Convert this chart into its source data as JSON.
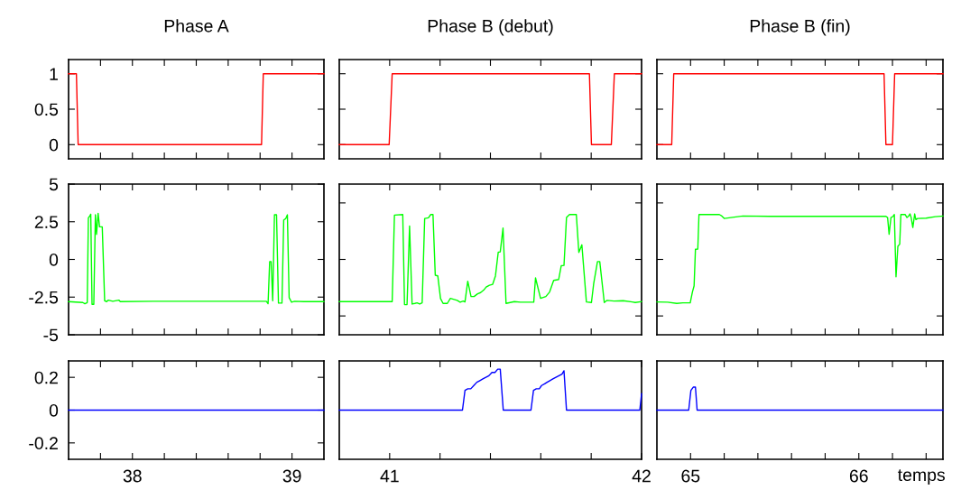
{
  "chart_data": [
    {
      "type": "line",
      "title": "Phase A",
      "xlim": [
        37.6,
        39.2
      ],
      "ylim": [
        -0.2,
        1.2
      ],
      "xticks": [
        37.8,
        38,
        38.2,
        38.4,
        38.6,
        38.8,
        39
      ],
      "yticks": [
        0,
        0.5,
        1
      ],
      "tick_labels": "y",
      "grid": false,
      "series": [
        {
          "color": "#ff0000",
          "x": [
            37.6,
            37.649,
            37.66,
            38.809,
            38.82,
            39.2
          ],
          "values": [
            1,
            1,
            0,
            0,
            1,
            1
          ]
        }
      ]
    },
    {
      "type": "line",
      "title": "Phase B (debut)",
      "xlim": [
        40.8,
        42
      ],
      "ylim": [
        -0.2,
        1.2
      ],
      "xticks": [
        41,
        41.2,
        41.4,
        41.6,
        41.8
      ],
      "yticks": [
        0,
        0.5,
        1
      ],
      "tick_labels": false,
      "grid": false,
      "series": [
        {
          "color": "#ff0000",
          "x": [
            40.8,
            40.998,
            41.01,
            41.793,
            41.801,
            41.88,
            41.892,
            42
          ],
          "values": [
            0,
            0,
            1,
            1,
            0,
            0,
            1,
            1
          ]
        }
      ]
    },
    {
      "type": "line",
      "title": "Phase B (fin)",
      "xlim": [
        64.8,
        66.5
      ],
      "ylim": [
        -0.2,
        1.2
      ],
      "xticks": [
        65,
        65.2,
        65.4,
        65.6,
        65.8,
        66,
        66.2,
        66.4
      ],
      "yticks": [
        0,
        0.5,
        1
      ],
      "tick_labels": false,
      "grid": false,
      "series": [
        {
          "color": "#ff0000",
          "x": [
            64.8,
            64.888,
            64.9,
            66.15,
            66.161,
            66.2,
            66.213,
            66.5
          ],
          "values": [
            0,
            0,
            1,
            1,
            0,
            0,
            1,
            1
          ]
        }
      ]
    },
    {
      "type": "line",
      "xlim": [
        37.6,
        39.2
      ],
      "ylim": [
        -5,
        5
      ],
      "xticks": [
        37.8,
        38,
        38.2,
        38.4,
        38.6,
        38.8,
        39
      ],
      "yticks": [
        -5,
        -2.5,
        0,
        2.5,
        5
      ],
      "tick_labels": "y",
      "grid": false,
      "series": [
        {
          "color": "#00ff00",
          "x": [
            37.6,
            37.689,
            37.702,
            37.717,
            37.724,
            37.732,
            37.739,
            37.747,
            37.758,
            37.768,
            37.775,
            37.785,
            37.794,
            37.811,
            37.826,
            37.839,
            37.849,
            37.877,
            37.915,
            37.924,
            38.131,
            38.319,
            38.508,
            38.696,
            38.839,
            38.85,
            38.86,
            38.869,
            38.879,
            38.89,
            38.903,
            38.915,
            38.937,
            38.948,
            38.96,
            38.971,
            38.982,
            38.997,
            39.016,
            39.073,
            39.2
          ],
          "values": [
            -2.8,
            -2.86,
            -2.94,
            -2.86,
            2.76,
            2.86,
            3.0,
            -2.98,
            -2.98,
            2.96,
            1.66,
            3.06,
            2.16,
            2.16,
            -2.74,
            -2.8,
            -2.7,
            -2.78,
            -2.7,
            -2.8,
            -2.78,
            -2.78,
            -2.78,
            -2.78,
            -2.78,
            -2.94,
            -0.14,
            -0.14,
            -2.74,
            2.96,
            2.96,
            -2.9,
            -2.9,
            2.62,
            2.7,
            2.96,
            -2.54,
            -2.84,
            -2.78,
            -2.8,
            -2.8
          ]
        }
      ]
    },
    {
      "type": "line",
      "xlim": [
        40.8,
        42
      ],
      "ylim": [
        -5,
        5
      ],
      "xticks": [
        41,
        41.2,
        41.4,
        41.6,
        41.8
      ],
      "yticks": [
        -3.75,
        0,
        3.75
      ],
      "tick_labels": false,
      "grid": false,
      "series": [
        {
          "color": "#00ff00",
          "x": [
            40.8,
            40.896,
            41.01,
            41.019,
            41.052,
            41.059,
            41.069,
            41.079,
            41.089,
            41.1,
            41.109,
            41.119,
            41.129,
            41.139,
            41.154,
            41.163,
            41.172,
            41.181,
            41.191,
            41.202,
            41.212,
            41.229,
            41.241,
            41.253,
            41.268,
            41.28,
            41.292,
            41.299,
            41.31,
            41.323,
            41.335,
            41.349,
            41.361,
            41.373,
            41.383,
            41.396,
            41.409,
            41.42,
            41.431,
            41.439,
            41.45,
            41.462,
            41.495,
            41.519,
            41.572,
            41.579,
            41.599,
            41.62,
            41.635,
            41.651,
            41.671,
            41.681,
            41.692,
            41.702,
            41.714,
            41.741,
            41.751,
            41.763,
            41.781,
            41.801,
            41.81,
            41.825,
            41.834,
            41.852,
            41.862,
            41.891,
            41.927,
            41.963,
            41.975,
            42
          ],
          "values": [
            -2.8,
            -2.8,
            -2.8,
            2.94,
            2.98,
            -3.0,
            -3.0,
            2.22,
            -2.96,
            -2.92,
            -2.88,
            -2.96,
            -2.88,
            2.72,
            2.76,
            2.98,
            2.98,
            -1.05,
            -1.09,
            -2.6,
            -2.92,
            -2.92,
            -2.58,
            -2.64,
            -2.72,
            -2.84,
            -2.76,
            -2.82,
            -1.45,
            -2.46,
            -2.46,
            -2.28,
            -2.2,
            -2.04,
            -1.83,
            -1.71,
            -1.65,
            -1.09,
            0.48,
            0.5,
            2.08,
            -2.92,
            -2.8,
            -2.84,
            -2.84,
            -1.23,
            -2.58,
            -2.46,
            -2.16,
            -1.39,
            -1.33,
            -0.42,
            -0.4,
            2.78,
            2.98,
            2.98,
            0.46,
            0.97,
            -2.82,
            -2.86,
            -1.59,
            -0.14,
            -0.14,
            -2.86,
            -2.72,
            -2.76,
            -2.74,
            -2.82,
            -2.86,
            -2.8
          ]
        }
      ]
    },
    {
      "type": "line",
      "xlim": [
        64.8,
        66.5
      ],
      "ylim": [
        -5,
        5
      ],
      "xticks": [
        65,
        65.2,
        65.4,
        65.6,
        65.8,
        66,
        66.2,
        66.4
      ],
      "yticks": [
        -3.75,
        0,
        3.75
      ],
      "tick_labels": false,
      "grid": false,
      "series": [
        {
          "color": "#00ff00",
          "x": [
            64.8,
            64.864,
            64.918,
            64.954,
            64.998,
            65.011,
            65.021,
            65.029,
            65.043,
            65.05,
            65.114,
            65.171,
            65.186,
            65.2,
            65.239,
            65.311,
            65.471,
            65.829,
            66.161,
            66.171,
            66.18,
            66.191,
            66.204,
            66.211,
            66.221,
            66.232,
            66.243,
            66.25,
            66.275,
            66.286,
            66.296,
            66.304,
            66.311,
            66.321,
            66.332,
            66.339,
            66.35,
            66.4,
            66.454,
            66.5
          ],
          "values": [
            -2.82,
            -2.84,
            -2.92,
            -2.88,
            -2.88,
            -2.16,
            -1.75,
            0.67,
            0.69,
            2.98,
            2.98,
            2.98,
            2.88,
            2.72,
            2.78,
            2.88,
            2.86,
            2.86,
            2.86,
            2.78,
            1.67,
            2.78,
            2.86,
            2.98,
            -1.15,
            0.87,
            1.01,
            2.98,
            2.98,
            2.78,
            2.88,
            3.02,
            2.78,
            2.12,
            3.02,
            2.64,
            2.72,
            2.74,
            2.84,
            2.88
          ]
        }
      ]
    },
    {
      "type": "line",
      "xlim": [
        37.6,
        39.2
      ],
      "ylim": [
        -0.3,
        0.3
      ],
      "xticks": [
        {
          "value": 37.8,
          "label": null
        },
        38,
        {
          "value": 38.2,
          "label": null
        },
        {
          "value": 38.4,
          "label": null
        },
        {
          "value": 38.6,
          "label": null
        },
        {
          "value": 38.8,
          "label": null
        },
        39
      ],
      "yticks": [
        -0.2,
        0,
        0.2
      ],
      "grid": false,
      "series": [
        {
          "color": "#0000ff",
          "x": [
            37.6,
            39.2
          ],
          "values": [
            0,
            0
          ]
        }
      ]
    },
    {
      "type": "line",
      "xlim": [
        40.8,
        42
      ],
      "ylim": [
        -0.3,
        0.3
      ],
      "xticks": [
        41,
        {
          "value": 41.2,
          "label": null
        },
        {
          "value": 41.4,
          "label": null
        },
        {
          "value": 41.6,
          "label": null
        },
        {
          "value": 41.8,
          "label": null
        },
        42
      ],
      "tick_labels": "x",
      "grid": false,
      "series": [
        {
          "color": "#0000ff",
          "x": [
            40.8,
            41.289,
            41.299,
            41.31,
            41.322,
            41.334,
            41.346,
            41.358,
            41.37,
            41.382,
            41.394,
            41.406,
            41.418,
            41.429,
            41.439,
            41.451,
            41.561,
            41.571,
            41.582,
            41.594,
            41.603,
            41.615,
            41.625,
            41.636,
            41.648,
            41.66,
            41.672,
            41.684,
            41.692,
            41.702,
            41.993,
            42
          ],
          "values": [
            0,
            0,
            0.12,
            0.13,
            0.13,
            0.15,
            0.17,
            0.18,
            0.19,
            0.2,
            0.21,
            0.23,
            0.23,
            0.25,
            0.25,
            0,
            0,
            0.12,
            0.13,
            0.13,
            0.15,
            0.16,
            0.17,
            0.18,
            0.19,
            0.2,
            0.21,
            0.22,
            0.24,
            0,
            0,
            0.1
          ]
        }
      ]
    },
    {
      "type": "line",
      "xlabel": "temps",
      "xlim": [
        64.8,
        66.5
      ],
      "ylim": [
        -0.3,
        0.3
      ],
      "xticks": [
        65,
        {
          "value": 65.2,
          "label": null
        },
        {
          "value": 65.4,
          "label": null
        },
        {
          "value": 65.6,
          "label": null
        },
        {
          "value": 65.8,
          "label": null
        },
        66,
        {
          "value": 66.2,
          "label": null
        },
        {
          "value": 66.4,
          "label": null
        }
      ],
      "tick_labels": "x",
      "grid": false,
      "series": [
        {
          "color": "#0000ff",
          "x": [
            64.8,
            64.989,
            65.002,
            65.016,
            65.029,
            65.039,
            66.5
          ],
          "values": [
            0,
            0,
            0.12,
            0.14,
            0.14,
            0,
            0
          ]
        }
      ]
    }
  ]
}
